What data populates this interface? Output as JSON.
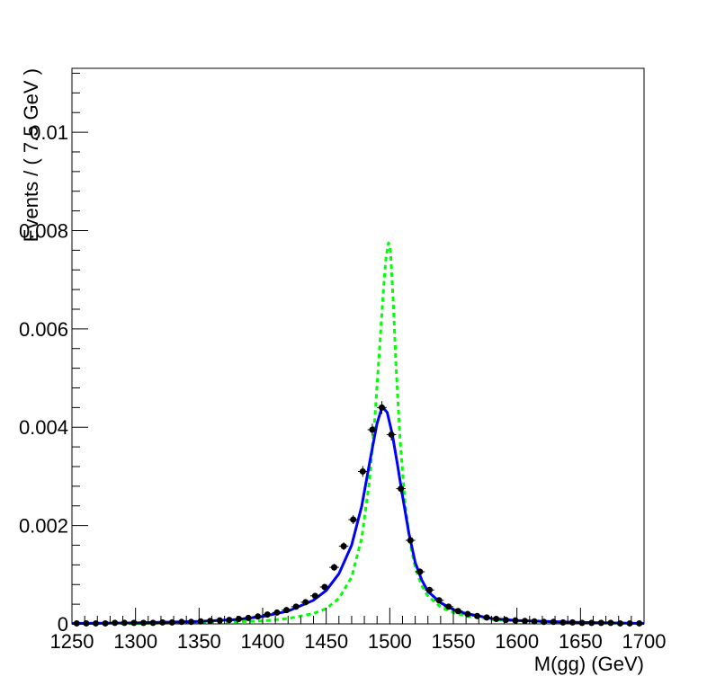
{
  "chart_data": {
    "type": "line",
    "xlabel": "M(gg) (GeV)",
    "ylabel": "Events / ( 7.5 GeV )",
    "xlim": [
      1250,
      1700
    ],
    "ylim": [
      0,
      0.0113
    ],
    "x_ticks": [
      "1250",
      "1300",
      "1350",
      "1400",
      "1450",
      "1500",
      "1550",
      "1600",
      "1650",
      "1700"
    ],
    "y_ticks": [
      "0",
      "0.002",
      "0.004",
      "0.006",
      "0.008",
      "0.01"
    ],
    "grid": false,
    "bin_width": 7.5,
    "colors": {
      "data": "#000000",
      "fit": "#0000ff",
      "truth": "#00ff00",
      "frame": "#000000"
    },
    "series": [
      {
        "style": "points-with-errors",
        "x": [
          1253.75,
          1261.25,
          1268.75,
          1276.25,
          1283.75,
          1291.25,
          1298.75,
          1306.25,
          1313.75,
          1321.25,
          1328.75,
          1336.25,
          1343.75,
          1351.25,
          1358.75,
          1366.25,
          1373.75,
          1381.25,
          1388.75,
          1396.25,
          1403.75,
          1411.25,
          1418.75,
          1426.25,
          1433.75,
          1441.25,
          1448.75,
          1456.25,
          1463.75,
          1471.25,
          1478.75,
          1486.25,
          1493.75,
          1501.25,
          1508.75,
          1516.25,
          1523.75,
          1531.25,
          1538.75,
          1546.25,
          1553.75,
          1561.25,
          1568.75,
          1576.25,
          1583.75,
          1591.25,
          1598.75,
          1606.25,
          1613.75,
          1621.25,
          1628.75,
          1636.25,
          1643.75,
          1651.25,
          1658.75,
          1666.25,
          1673.75,
          1681.25,
          1688.75,
          1696.25
        ],
        "y": [
          1e-05,
          1e-05,
          1e-05,
          1e-05,
          2e-05,
          2e-05,
          2e-05,
          2e-05,
          2e-05,
          3e-05,
          3e-05,
          4e-05,
          4e-05,
          5e-05,
          6e-05,
          7e-05,
          8e-05,
          0.0001,
          0.00012,
          0.00015,
          0.00019,
          0.00023,
          0.00028,
          0.00035,
          0.00044,
          0.00057,
          0.00075,
          0.00115,
          0.00158,
          0.00212,
          0.0031,
          0.00395,
          0.0044,
          0.00385,
          0.00275,
          0.0017,
          0.00106,
          0.00069,
          0.00048,
          0.00035,
          0.00026,
          0.0002,
          0.00016,
          0.00013,
          0.0001,
          8e-05,
          7e-05,
          6e-05,
          5e-05,
          4e-05,
          4e-05,
          3e-05,
          3e-05,
          2e-05,
          2e-05,
          2e-05,
          2e-05,
          1e-05,
          1e-05,
          1e-05
        ],
        "yerr": [
          2e-05,
          2e-05,
          2e-05,
          2e-05,
          2e-05,
          2e-05,
          2e-05,
          2e-05,
          2e-05,
          2e-05,
          2e-05,
          2e-05,
          2e-05,
          2e-05,
          2e-05,
          2e-05,
          2e-05,
          3e-05,
          3e-05,
          3e-05,
          3e-05,
          3e-05,
          4e-05,
          4e-05,
          4e-05,
          5e-05,
          6e-05,
          7e-05,
          8e-05,
          9e-05,
          0.00011,
          0.00012,
          0.00013,
          0.00012,
          0.0001,
          8e-05,
          7e-05,
          5e-05,
          5e-05,
          4e-05,
          3e-05,
          3e-05,
          3e-05,
          3e-05,
          2e-05,
          2e-05,
          2e-05,
          2e-05,
          2e-05,
          2e-05,
          2e-05,
          2e-05,
          2e-05,
          2e-05,
          2e-05,
          2e-05,
          2e-05,
          2e-05,
          2e-05,
          2e-05
        ]
      },
      {
        "style": "solid-line",
        "x": [
          1250,
          1300,
          1350,
          1380,
          1400,
          1420,
          1440,
          1450,
          1460,
          1470,
          1478,
          1485,
          1490,
          1494,
          1498,
          1502,
          1506,
          1510,
          1515,
          1520,
          1525,
          1530,
          1540,
          1550,
          1560,
          1580,
          1600,
          1650,
          1700
        ],
        "y": [
          1e-05,
          2e-05,
          5e-05,
          9e-05,
          0.00015,
          0.00026,
          0.00048,
          0.00068,
          0.00102,
          0.0016,
          0.0024,
          0.0034,
          0.00408,
          0.00442,
          0.0043,
          0.00385,
          0.00325,
          0.0026,
          0.00185,
          0.00125,
          0.0009,
          0.00066,
          0.00043,
          0.00029,
          0.00021,
          0.00011,
          7e-05,
          3e-05,
          1e-05
        ]
      },
      {
        "style": "dashed-line",
        "x": [
          1250,
          1300,
          1350,
          1400,
          1420,
          1440,
          1450,
          1460,
          1470,
          1478,
          1484,
          1488,
          1492,
          1495,
          1497,
          1499,
          1500,
          1501,
          1503,
          1505,
          1508,
          1512,
          1516,
          1520,
          1525,
          1530,
          1540,
          1550,
          1560,
          1580,
          1600,
          1650,
          1700
        ],
        "y": [
          1e-05,
          1e-05,
          2e-05,
          6e-05,
          0.00011,
          0.00021,
          0.00031,
          0.00052,
          0.00095,
          0.00175,
          0.0029,
          0.0041,
          0.0056,
          0.0068,
          0.00745,
          0.00775,
          0.0077,
          0.0074,
          0.0064,
          0.0052,
          0.0038,
          0.00245,
          0.00165,
          0.00115,
          0.00078,
          0.00057,
          0.00034,
          0.00023,
          0.00016,
          9e-05,
          6e-05,
          2e-05,
          1e-05
        ]
      }
    ]
  }
}
